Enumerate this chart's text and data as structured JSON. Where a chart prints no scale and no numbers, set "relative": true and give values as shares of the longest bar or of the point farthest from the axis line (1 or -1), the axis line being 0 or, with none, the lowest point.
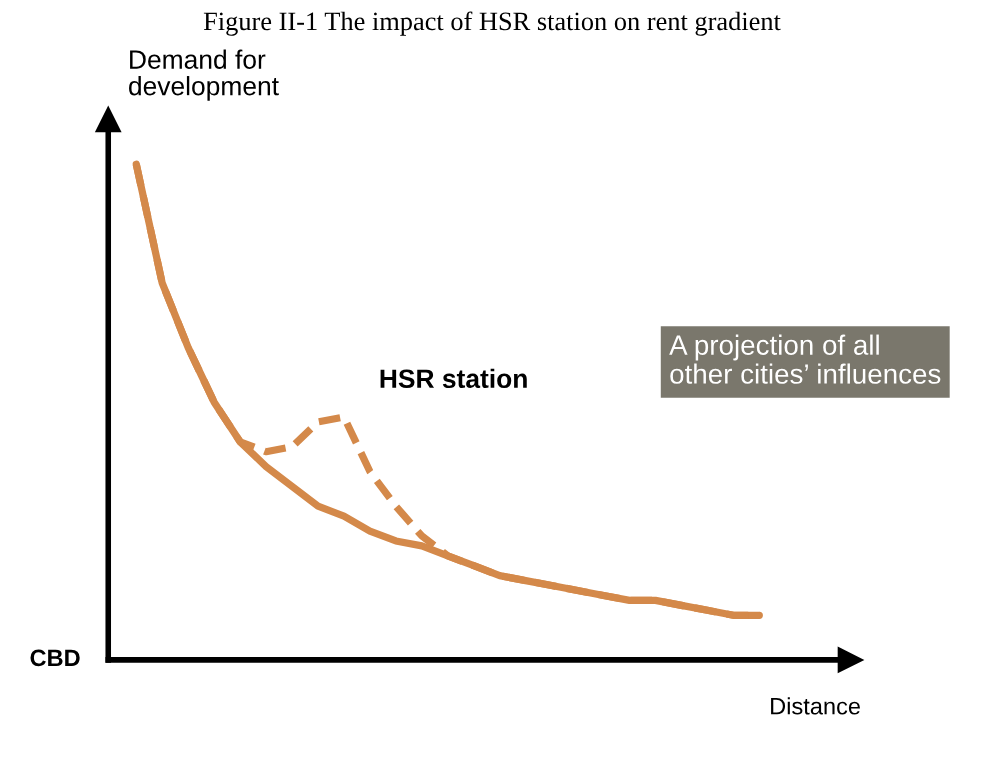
{
  "chart_data": {
    "type": "line",
    "relative": true,
    "title": "Figure II-1 The impact of HSR station on rent gradient",
    "ylabel": "Demand for\ndevelopment",
    "xlabel": "Distance",
    "categories": [
      null,
      null,
      null,
      null,
      null,
      null,
      null,
      null,
      null,
      null,
      null,
      null,
      null,
      null,
      null,
      null,
      null,
      null,
      null,
      null,
      null,
      null,
      null,
      null,
      null
    ],
    "series": [
      {
        "color": "#d4894a",
        "line_style": "solid",
        "values": [
          1.0,
          0.76,
          0.63,
          0.52,
          0.44,
          0.39,
          0.35,
          0.31,
          0.29,
          0.26,
          0.24,
          0.23,
          0.21,
          0.19,
          0.17,
          0.16,
          0.15,
          0.14,
          0.13,
          0.12,
          0.12,
          0.11,
          0.1,
          0.09,
          0.09
        ]
      },
      {
        "color": "#d4894a",
        "line_style": "dashed",
        "values": [
          1.0,
          0.76,
          0.63,
          0.52,
          0.44,
          0.42,
          0.43,
          0.48,
          0.49,
          0.38,
          0.31,
          0.25,
          0.21,
          0.19,
          0.17,
          0.16,
          0.15,
          0.14,
          0.13,
          0.12,
          0.12,
          0.11,
          0.1,
          0.09,
          0.09
        ]
      }
    ],
    "annotations": [
      "HSR station",
      "A projection of all\nother cities’ influences",
      "CBD"
    ],
    "grid": false,
    "legend": false,
    "marker": "none"
  }
}
